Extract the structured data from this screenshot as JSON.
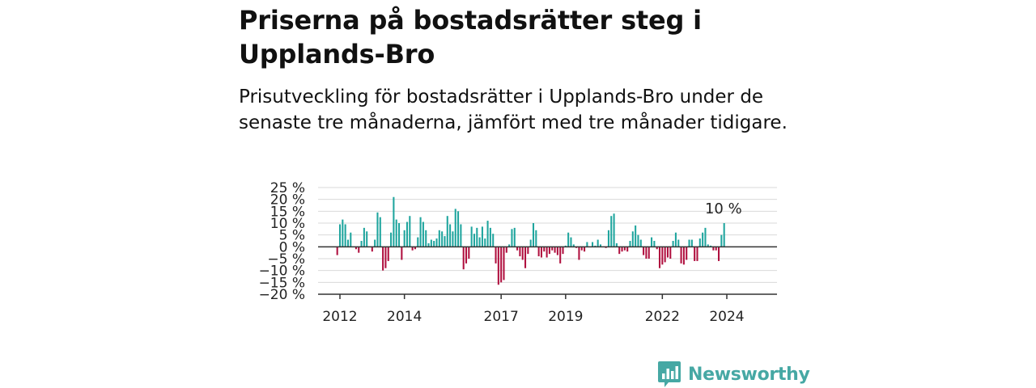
{
  "header": {
    "title": "Priserna på bostadsrätter steg i Upplands-Bro",
    "subtitle": "Prisutveckling för bostadsrätter i Upplands-Bro under de senaste tre månaderna, jämfört med tre månader tidigare."
  },
  "brand": {
    "name": "Newsworthy",
    "icon": "newsworthy-logo-icon",
    "color": "#46a8a4"
  },
  "colors": {
    "positive": "#1fa59e",
    "negative": "#b0103f"
  },
  "chart_data": {
    "type": "bar",
    "title": "",
    "xlabel": "",
    "ylabel": "",
    "ylim": [
      -20,
      25
    ],
    "y_ticks": [
      25,
      20,
      15,
      10,
      5,
      0,
      -5,
      -10,
      -15,
      -20
    ],
    "y_tick_labels": [
      "25 %",
      "20 %",
      "15 %",
      "10 %",
      "5 %",
      "0 %",
      "−5 %",
      "−10 %",
      "−15 %",
      "−20 %"
    ],
    "x_ticks": [
      2012,
      2014,
      2017,
      2019,
      2022,
      2024
    ],
    "x_tick_labels": [
      "2012",
      "2014",
      "2017",
      "2019",
      "2022",
      "2024"
    ],
    "grid": true,
    "legend": "none",
    "start": "2011-12",
    "frequency": "monthly",
    "annotation": {
      "text": "10 %",
      "target": "last"
    },
    "values": [
      -3.5,
      9.5,
      11.5,
      9.5,
      3,
      6,
      0,
      -1,
      -2.5,
      2.5,
      8,
      6.5,
      0,
      -2,
      3,
      14.5,
      12.5,
      -10,
      -9,
      -6,
      6,
      21,
      11.5,
      10,
      -5.5,
      7,
      10.5,
      13,
      -1.5,
      -1,
      4,
      12.5,
      10.5,
      7,
      1.5,
      3,
      2.5,
      3.5,
      7,
      6.5,
      4.5,
      13,
      9.5,
      6.5,
      16,
      15,
      9.5,
      -9.5,
      -7,
      -5,
      8.5,
      5.5,
      8,
      4,
      8.5,
      3.5,
      11,
      8,
      5.5,
      -7,
      -16,
      -15,
      -14,
      -2.5,
      1,
      7.5,
      8,
      -1.5,
      -4,
      -5.5,
      -9,
      -3,
      3,
      10,
      7,
      -4,
      -4.5,
      -2,
      -4.5,
      -3,
      -1.5,
      -2.5,
      -3.5,
      -7,
      -3,
      0.5,
      6,
      4,
      1,
      -0.5,
      -5.5,
      -1.5,
      -2,
      2,
      0,
      2,
      0.5,
      3,
      1,
      0,
      -0.5,
      7,
      13,
      14,
      1.5,
      -3,
      -2,
      -1.5,
      -2,
      2.5,
      6.5,
      9,
      5,
      3,
      -3.5,
      -5,
      -5,
      4,
      2.5,
      -1,
      -9,
      -7.5,
      -6.5,
      -4.5,
      -5,
      2.5,
      6,
      3,
      -7,
      -7.5,
      -5.5,
      3,
      3,
      -6,
      -6,
      3.5,
      6,
      8,
      1,
      0.5,
      -1.5,
      -1.5,
      -6,
      5,
      10
    ]
  }
}
